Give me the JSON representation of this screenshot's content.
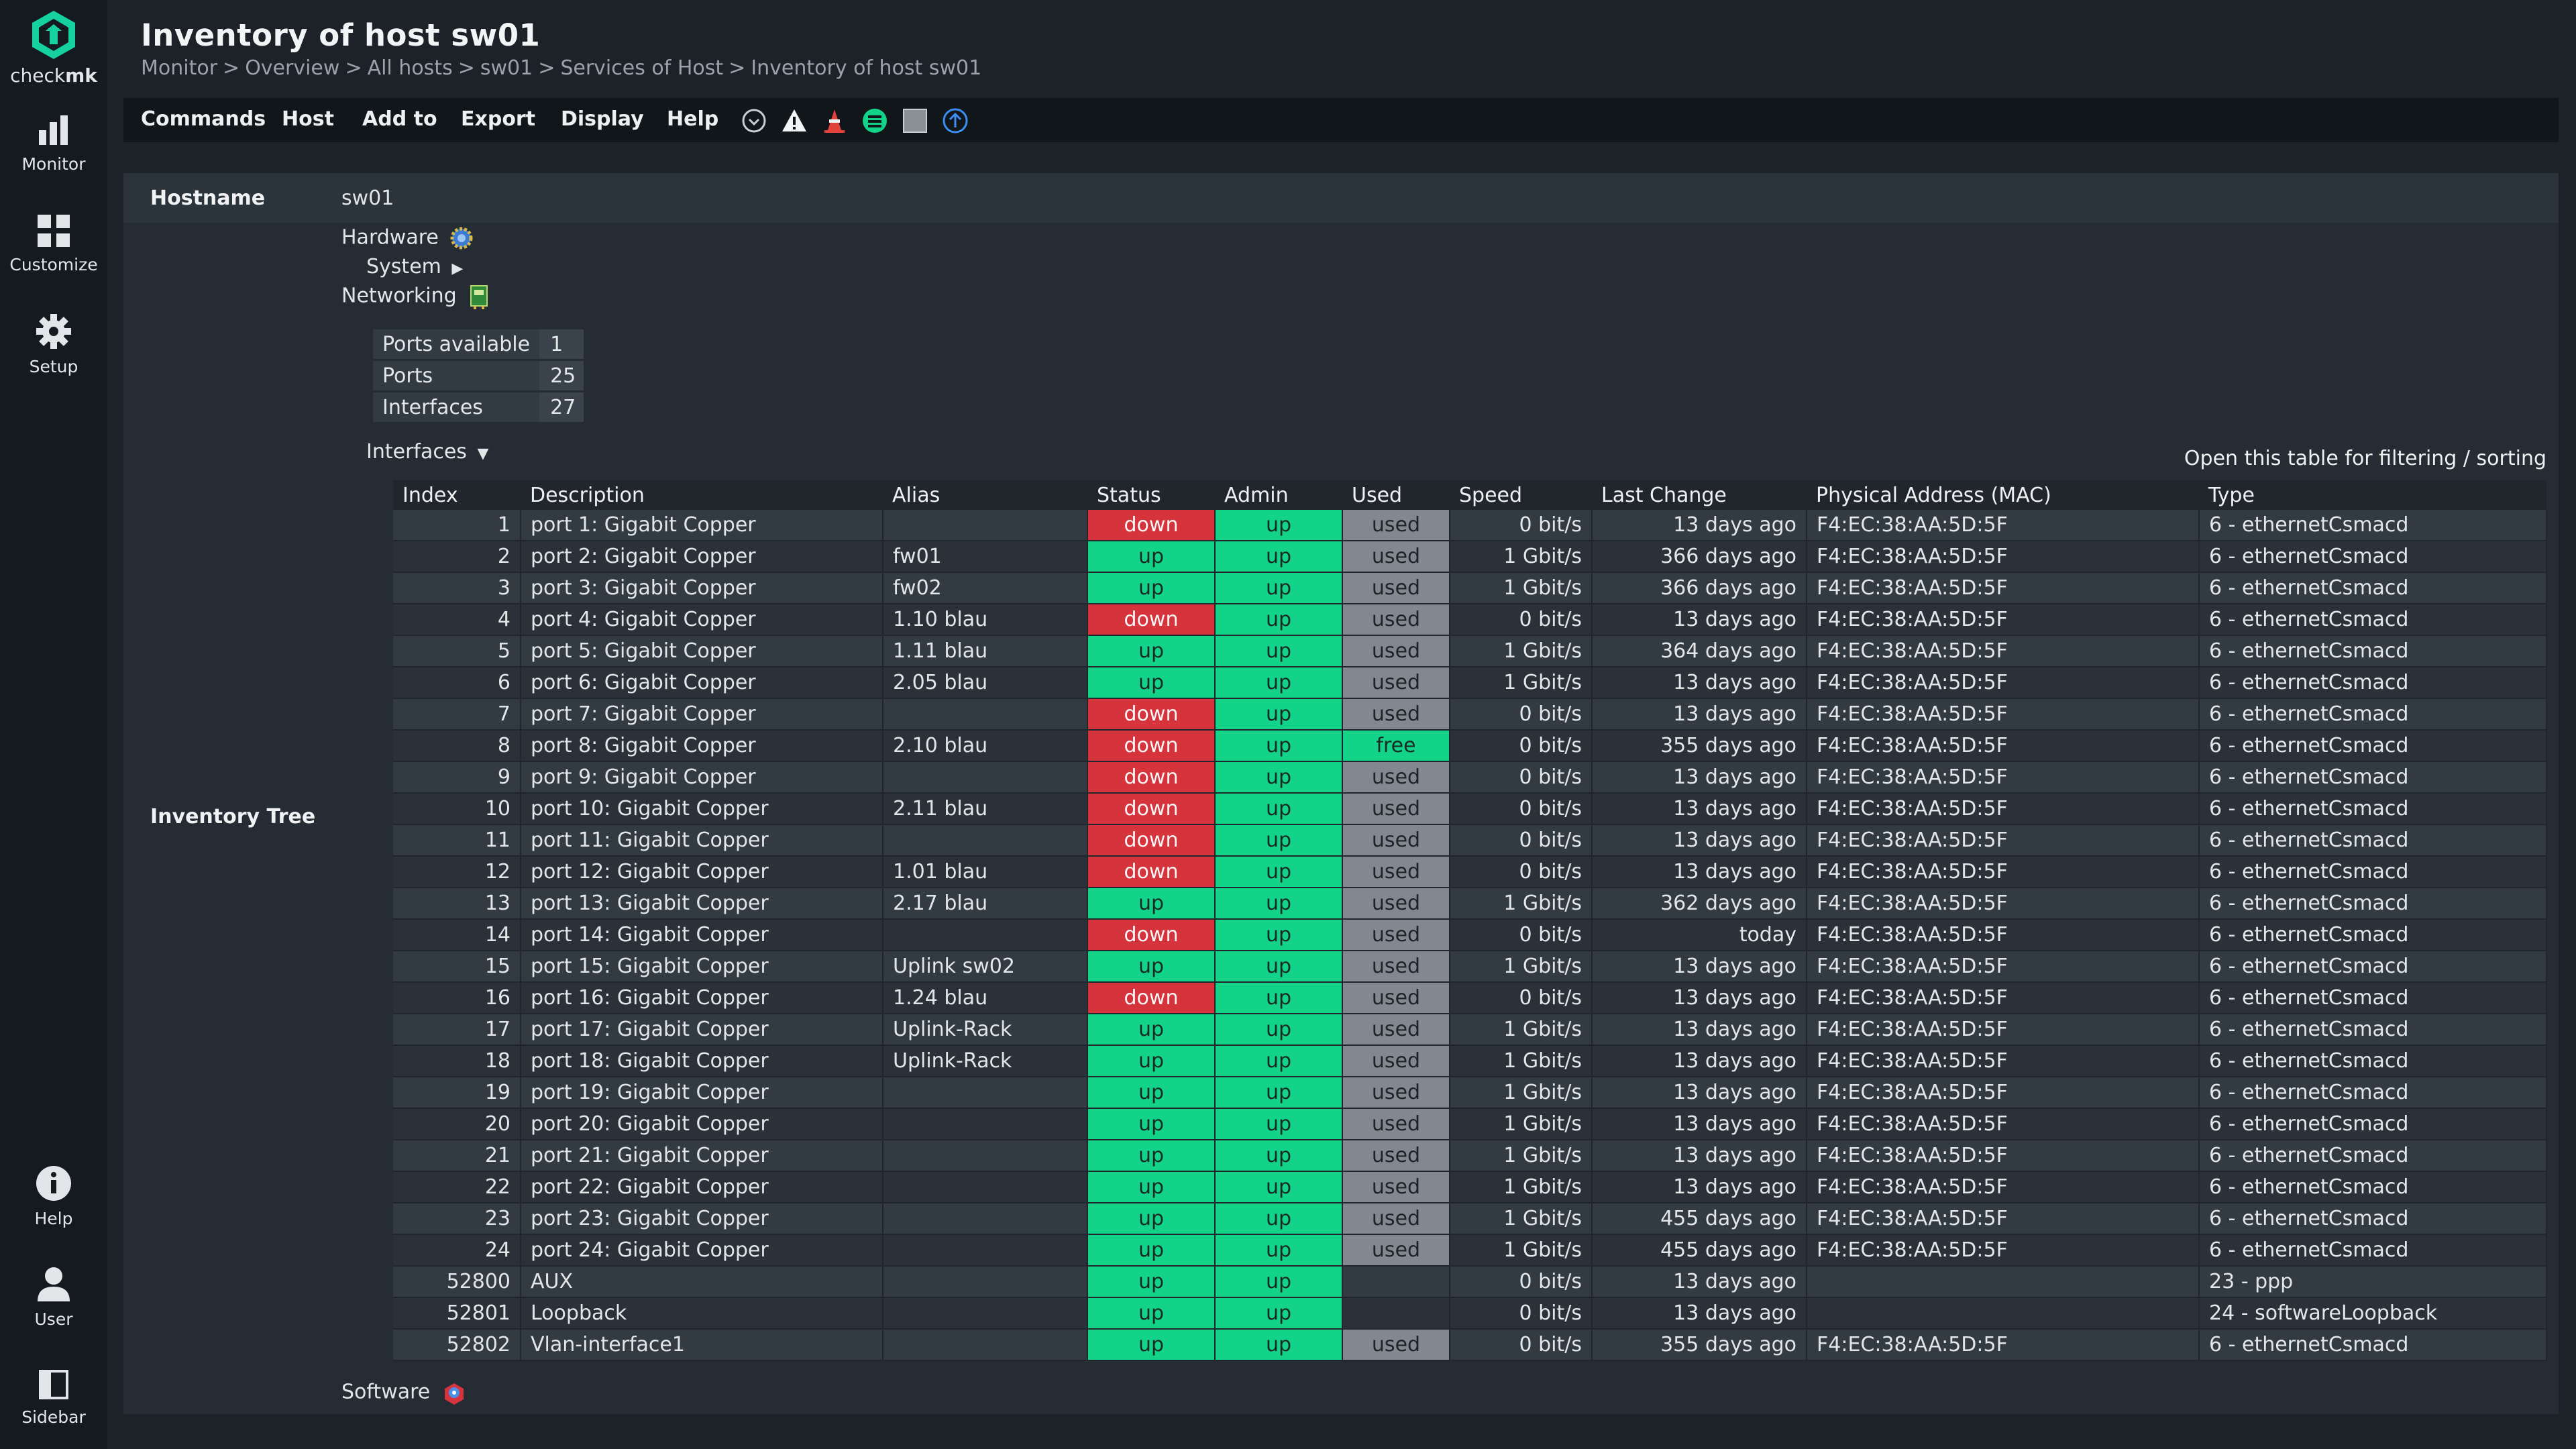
{
  "nav": {
    "brand_check": "check",
    "brand_mk": "mk",
    "items": [
      {
        "label": "Monitor",
        "icon": "monitor-icon"
      },
      {
        "label": "Customize",
        "icon": "customize-icon"
      },
      {
        "label": "Setup",
        "icon": "gear-icon"
      }
    ],
    "bottom_items": [
      {
        "label": "Help",
        "icon": "info-icon"
      },
      {
        "label": "User",
        "icon": "user-icon"
      },
      {
        "label": "Sidebar",
        "icon": "sidebar-icon"
      }
    ]
  },
  "header": {
    "title": "Inventory of host sw01",
    "breadcrumb": [
      "Monitor",
      "Overview",
      "All hosts",
      "sw01",
      "Services of Host",
      "Inventory of host sw01"
    ]
  },
  "menu": {
    "items": [
      "Commands",
      "Host",
      "Add to",
      "Export",
      "Display",
      "Help"
    ],
    "icons": [
      "clock-icon",
      "warning-icon",
      "cone-icon",
      "list-icon",
      "stop-icon",
      "upload-icon"
    ]
  },
  "colors": {
    "up": "#13d389",
    "down": "#d6343d",
    "used": "#818890",
    "free": "#13d389"
  },
  "hostname": {
    "label": "Hostname",
    "value": "sw01"
  },
  "tree": {
    "label": "Inventory Tree",
    "hardware": "Hardware",
    "system": "System",
    "networking": "Networking",
    "interfaces": "Interfaces",
    "software": "Software",
    "open_table": "Open this table for filtering / sorting"
  },
  "summary": [
    {
      "label": "Ports available",
      "value": "1"
    },
    {
      "label": "Ports",
      "value": "25"
    },
    {
      "label": "Interfaces",
      "value": "27"
    }
  ],
  "interfaces": {
    "columns": [
      "Index",
      "Description",
      "Alias",
      "Status",
      "Admin",
      "Used",
      "Speed",
      "Last Change",
      "Physical Address (MAC)",
      "Type"
    ],
    "rows": [
      [
        "1",
        "port 1: Gigabit Copper",
        "",
        "down",
        "up",
        "used",
        "0 bit/s",
        "13 days ago",
        "F4:EC:38:AA:5D:5F",
        "6 - ethernetCsmacd"
      ],
      [
        "2",
        "port 2: Gigabit Copper",
        "fw01",
        "up",
        "up",
        "used",
        "1 Gbit/s",
        "366 days ago",
        "F4:EC:38:AA:5D:5F",
        "6 - ethernetCsmacd"
      ],
      [
        "3",
        "port 3: Gigabit Copper",
        "fw02",
        "up",
        "up",
        "used",
        "1 Gbit/s",
        "366 days ago",
        "F4:EC:38:AA:5D:5F",
        "6 - ethernetCsmacd"
      ],
      [
        "4",
        "port 4: Gigabit Copper",
        "1.10 blau",
        "down",
        "up",
        "used",
        "0 bit/s",
        "13 days ago",
        "F4:EC:38:AA:5D:5F",
        "6 - ethernetCsmacd"
      ],
      [
        "5",
        "port 5: Gigabit Copper",
        "1.11 blau",
        "up",
        "up",
        "used",
        "1 Gbit/s",
        "364 days ago",
        "F4:EC:38:AA:5D:5F",
        "6 - ethernetCsmacd"
      ],
      [
        "6",
        "port 6: Gigabit Copper",
        "2.05 blau",
        "up",
        "up",
        "used",
        "1 Gbit/s",
        "13 days ago",
        "F4:EC:38:AA:5D:5F",
        "6 - ethernetCsmacd"
      ],
      [
        "7",
        "port 7: Gigabit Copper",
        "",
        "down",
        "up",
        "used",
        "0 bit/s",
        "13 days ago",
        "F4:EC:38:AA:5D:5F",
        "6 - ethernetCsmacd"
      ],
      [
        "8",
        "port 8: Gigabit Copper",
        "2.10 blau",
        "down",
        "up",
        "free",
        "0 bit/s",
        "355 days ago",
        "F4:EC:38:AA:5D:5F",
        "6 - ethernetCsmacd"
      ],
      [
        "9",
        "port 9: Gigabit Copper",
        "",
        "down",
        "up",
        "used",
        "0 bit/s",
        "13 days ago",
        "F4:EC:38:AA:5D:5F",
        "6 - ethernetCsmacd"
      ],
      [
        "10",
        "port 10: Gigabit Copper",
        "2.11 blau",
        "down",
        "up",
        "used",
        "0 bit/s",
        "13 days ago",
        "F4:EC:38:AA:5D:5F",
        "6 - ethernetCsmacd"
      ],
      [
        "11",
        "port 11: Gigabit Copper",
        "",
        "down",
        "up",
        "used",
        "0 bit/s",
        "13 days ago",
        "F4:EC:38:AA:5D:5F",
        "6 - ethernetCsmacd"
      ],
      [
        "12",
        "port 12: Gigabit Copper",
        "1.01 blau",
        "down",
        "up",
        "used",
        "0 bit/s",
        "13 days ago",
        "F4:EC:38:AA:5D:5F",
        "6 - ethernetCsmacd"
      ],
      [
        "13",
        "port 13: Gigabit Copper",
        "2.17 blau",
        "up",
        "up",
        "used",
        "1 Gbit/s",
        "362 days ago",
        "F4:EC:38:AA:5D:5F",
        "6 - ethernetCsmacd"
      ],
      [
        "14",
        "port 14: Gigabit Copper",
        "",
        "down",
        "up",
        "used",
        "0 bit/s",
        "today",
        "F4:EC:38:AA:5D:5F",
        "6 - ethernetCsmacd"
      ],
      [
        "15",
        "port 15: Gigabit Copper",
        "Uplink sw02",
        "up",
        "up",
        "used",
        "1 Gbit/s",
        "13 days ago",
        "F4:EC:38:AA:5D:5F",
        "6 - ethernetCsmacd"
      ],
      [
        "16",
        "port 16: Gigabit Copper",
        "1.24 blau",
        "down",
        "up",
        "used",
        "0 bit/s",
        "13 days ago",
        "F4:EC:38:AA:5D:5F",
        "6 - ethernetCsmacd"
      ],
      [
        "17",
        "port 17: Gigabit Copper",
        "Uplink-Rack",
        "up",
        "up",
        "used",
        "1 Gbit/s",
        "13 days ago",
        "F4:EC:38:AA:5D:5F",
        "6 - ethernetCsmacd"
      ],
      [
        "18",
        "port 18: Gigabit Copper",
        "Uplink-Rack",
        "up",
        "up",
        "used",
        "1 Gbit/s",
        "13 days ago",
        "F4:EC:38:AA:5D:5F",
        "6 - ethernetCsmacd"
      ],
      [
        "19",
        "port 19: Gigabit Copper",
        "",
        "up",
        "up",
        "used",
        "1 Gbit/s",
        "13 days ago",
        "F4:EC:38:AA:5D:5F",
        "6 - ethernetCsmacd"
      ],
      [
        "20",
        "port 20: Gigabit Copper",
        "",
        "up",
        "up",
        "used",
        "1 Gbit/s",
        "13 days ago",
        "F4:EC:38:AA:5D:5F",
        "6 - ethernetCsmacd"
      ],
      [
        "21",
        "port 21: Gigabit Copper",
        "",
        "up",
        "up",
        "used",
        "1 Gbit/s",
        "13 days ago",
        "F4:EC:38:AA:5D:5F",
        "6 - ethernetCsmacd"
      ],
      [
        "22",
        "port 22: Gigabit Copper",
        "",
        "up",
        "up",
        "used",
        "1 Gbit/s",
        "13 days ago",
        "F4:EC:38:AA:5D:5F",
        "6 - ethernetCsmacd"
      ],
      [
        "23",
        "port 23: Gigabit Copper",
        "",
        "up",
        "up",
        "used",
        "1 Gbit/s",
        "455 days ago",
        "F4:EC:38:AA:5D:5F",
        "6 - ethernetCsmacd"
      ],
      [
        "24",
        "port 24: Gigabit Copper",
        "",
        "up",
        "up",
        "used",
        "1 Gbit/s",
        "455 days ago",
        "F4:EC:38:AA:5D:5F",
        "6 - ethernetCsmacd"
      ],
      [
        "52800",
        "AUX",
        "",
        "up",
        "up",
        "",
        "0 bit/s",
        "13 days ago",
        "",
        "23 - ppp"
      ],
      [
        "52801",
        "Loopback",
        "",
        "up",
        "up",
        "",
        "0 bit/s",
        "13 days ago",
        "",
        "24 - softwareLoopback"
      ],
      [
        "52802",
        "Vlan-interface1",
        "",
        "up",
        "up",
        "used",
        "0 bit/s",
        "355 days ago",
        "F4:EC:38:AA:5D:5F",
        "6 - ethernetCsmacd"
      ]
    ]
  }
}
